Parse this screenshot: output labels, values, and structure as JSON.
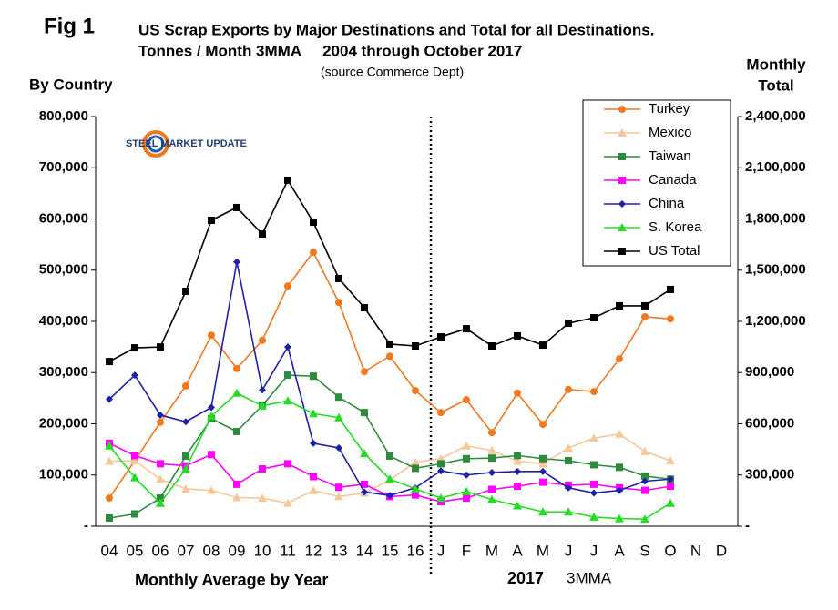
{
  "chart_data": {
    "type": "line",
    "figure_label": "Fig 1",
    "title": "US Scrap Exports by Major Destinations and Total for all Destinations.",
    "subtitle": "Tonnes / Month 3MMA     2004 through October 2017",
    "source": "(source Commerce Dept)",
    "y_axis_label": "By Country",
    "y2_axis_label": [
      "Monthly",
      "Total"
    ],
    "logo": "STEEL MARKET UPDATE",
    "x_group_labels": [
      "Monthly Average by Year",
      "2017",
      "3MMA"
    ],
    "categories": [
      "04",
      "05",
      "06",
      "07",
      "08",
      "09",
      "10",
      "11",
      "12",
      "13",
      "14",
      "15",
      "16",
      "J",
      "F",
      "M",
      "A",
      "M",
      "J",
      "J",
      "A",
      "S",
      "O",
      "N",
      "D"
    ],
    "series": [
      {
        "name": "Turkey",
        "color": "#f07820",
        "marker": "circle",
        "values": [
          55000,
          128000,
          203000,
          274000,
          373000,
          308000,
          363000,
          469000,
          535000,
          437000,
          302000,
          332000,
          265000,
          222000,
          247000,
          183000,
          260000,
          199000,
          267000,
          263000,
          327000,
          409000,
          405000,
          null,
          null
        ]
      },
      {
        "name": "Mexico",
        "color": "#f5c89a",
        "marker": "triangle",
        "values": [
          127000,
          128000,
          92000,
          73000,
          70000,
          56000,
          55000,
          45000,
          70000,
          58000,
          65000,
          90000,
          125000,
          132000,
          157000,
          148000,
          127000,
          122000,
          153000,
          172000,
          180000,
          146000,
          128000,
          null,
          null
        ]
      },
      {
        "name": "Taiwan",
        "color": "#2e8b3e",
        "marker": "square",
        "values": [
          16000,
          24000,
          55000,
          137000,
          210000,
          185000,
          236000,
          295000,
          293000,
          252000,
          222000,
          137000,
          113000,
          122000,
          132000,
          133000,
          138000,
          132000,
          128000,
          120000,
          115000,
          98000,
          92000,
          null,
          null
        ]
      },
      {
        "name": "Canada",
        "color": "#ff00ff",
        "marker": "square",
        "values": [
          162000,
          138000,
          122000,
          118000,
          140000,
          82000,
          112000,
          122000,
          97000,
          76000,
          82000,
          58000,
          61000,
          48000,
          55000,
          72000,
          78000,
          86000,
          80000,
          82000,
          75000,
          70000,
          78000,
          null,
          null
        ]
      },
      {
        "name": "China",
        "color": "#1f1fa8",
        "marker": "diamond",
        "values": [
          248000,
          295000,
          217000,
          204000,
          232000,
          516000,
          266000,
          350000,
          162000,
          153000,
          67000,
          60000,
          75000,
          108000,
          100000,
          105000,
          107000,
          107000,
          75000,
          65000,
          70000,
          88000,
          92000,
          null,
          null
        ]
      },
      {
        "name": "S. Korea",
        "color": "#22dd22",
        "marker": "triangle",
        "values": [
          157000,
          95000,
          45000,
          112000,
          215000,
          260000,
          235000,
          245000,
          220000,
          212000,
          142000,
          92000,
          73000,
          55000,
          68000,
          52000,
          40000,
          28000,
          28000,
          18000,
          15000,
          14000,
          45000,
          null,
          null
        ]
      },
      {
        "name": "US Total",
        "color": "#000000",
        "marker": "square",
        "axis": "y2",
        "values": [
          965000,
          1045000,
          1050000,
          1376000,
          1792000,
          1867000,
          1712000,
          2027000,
          1781000,
          1451000,
          1280000,
          1067000,
          1056000,
          1109000,
          1157000,
          1056000,
          1115000,
          1061000,
          1189000,
          1221000,
          1291000,
          1291000,
          1387000,
          null,
          null
        ]
      }
    ],
    "ylim": [
      0,
      800000
    ],
    "yticks": [
      {
        "value": 0,
        "label": "-"
      },
      {
        "value": 100000,
        "label": "100,000"
      },
      {
        "value": 200000,
        "label": "200,000"
      },
      {
        "value": 300000,
        "label": "300,000"
      },
      {
        "value": 400000,
        "label": "400,000"
      },
      {
        "value": 500000,
        "label": "500,000"
      },
      {
        "value": 600000,
        "label": "600,000"
      },
      {
        "value": 700000,
        "label": "700,000"
      },
      {
        "value": 800000,
        "label": "800,000"
      }
    ],
    "y2lim": [
      0,
      2400000
    ],
    "y2ticks": [
      {
        "value": 0,
        "label": "-"
      },
      {
        "value": 300000,
        "label": "300,000"
      },
      {
        "value": 600000,
        "label": "600,000"
      },
      {
        "value": 900000,
        "label": "900,000"
      },
      {
        "value": 1200000,
        "label": "1,200,000"
      },
      {
        "value": 1500000,
        "label": "1,500,000"
      },
      {
        "value": 1800000,
        "label": "1,800,000"
      },
      {
        "value": 2100000,
        "label": "2,100,000"
      },
      {
        "value": 2400000,
        "label": "2,400,000"
      }
    ],
    "grid": false,
    "legend": "upper right"
  }
}
